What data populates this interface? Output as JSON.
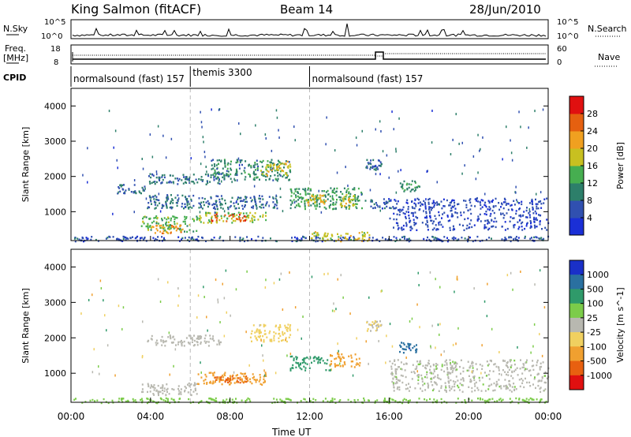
{
  "header": {
    "station": "King Salmon (fitACF)",
    "beam": "Beam 14",
    "date": "28/Jun/2010"
  },
  "strip_labels": {
    "nsky": "N.Sky",
    "nsearch": "N.Search",
    "freq_line1": "Freq.",
    "freq_line2": "[MHz]",
    "nave": "Nave",
    "cpid": "CPID"
  },
  "strip_ticks": {
    "nsky_top": "10^5",
    "nsky_bottom": "10^0",
    "freq_top": "18",
    "freq_bottom": "8",
    "nave_top": "60",
    "nave_bottom": "0"
  },
  "cpid_segments": [
    {
      "label": "normalsound (fast) 157",
      "start_hour": 0,
      "end_hour": 6
    },
    {
      "label": "themis 3300",
      "start_hour": 6,
      "end_hour": 12
    },
    {
      "label": "normalsound (fast) 157",
      "start_hour": 12,
      "end_hour": 24
    }
  ],
  "x_axis": {
    "title": "Time UT",
    "range_hours": [
      0,
      24
    ],
    "tick_labels": [
      "00:00",
      "04:00",
      "08:00",
      "12:00",
      "16:00",
      "20:00",
      "00:00"
    ],
    "tick_hours": [
      0,
      4,
      8,
      12,
      16,
      20,
      24
    ]
  },
  "panels": [
    {
      "key": "power",
      "ylabel": "Slant Range [km]",
      "yrange": [
        180,
        4500
      ],
      "yticks": [
        1000,
        2000,
        3000,
        4000
      ],
      "colorbar_label": "Power [dB]",
      "colorbar_ticks": [
        "4",
        "8",
        "12",
        "16",
        "20",
        "24",
        "28"
      ],
      "colorbar_colors": [
        "#1a2fd6",
        "#3050b0",
        "#2d7f6a",
        "#46ae50",
        "#c8c020",
        "#f0a020",
        "#e56010",
        "#e01010"
      ]
    },
    {
      "key": "velocity",
      "ylabel": "Slant Range [km]",
      "yrange": [
        180,
        4500
      ],
      "yticks": [
        1000,
        2000,
        3000,
        4000
      ],
      "colorbar_label": "Velocity [m s^-1]",
      "colorbar_ticks": [
        "1000",
        "500",
        "100",
        "25",
        "-25",
        "-100",
        "-500",
        "-1000"
      ],
      "colorbar_colors": [
        "#1a30c8",
        "#2a70a0",
        "#2f9a6a",
        "#7ccc4a",
        "#b8b8b0",
        "#f0d060",
        "#f0a030",
        "#e86010",
        "#e01010"
      ]
    }
  ],
  "chart_data": {
    "type": "heatmap",
    "title": "King Salmon (fitACF)  Beam 14  28/Jun/2010",
    "xlabel": "Time UT",
    "ylabel": "Slant Range [km]",
    "xlim_hours": [
      0,
      24
    ],
    "ylim_km": [
      180,
      4500
    ],
    "power_regions_dB": [
      {
        "t_start": 0.1,
        "t_end": 24,
        "r_start": 180,
        "r_end": 320,
        "value": 6
      },
      {
        "t_start": 3.5,
        "t_end": 6.3,
        "r_start": 450,
        "r_end": 900,
        "value": 14
      },
      {
        "t_start": 4.0,
        "t_end": 5.6,
        "r_start": 400,
        "r_end": 650,
        "value": 22
      },
      {
        "t_start": 6.3,
        "t_end": 9.8,
        "r_start": 700,
        "r_end": 1000,
        "value": 16
      },
      {
        "t_start": 7.0,
        "t_end": 8.8,
        "r_start": 750,
        "r_end": 950,
        "value": 27
      },
      {
        "t_start": 3.8,
        "t_end": 10.5,
        "r_start": 1100,
        "r_end": 1500,
        "value": 8
      },
      {
        "t_start": 3.8,
        "t_end": 7.5,
        "r_start": 1800,
        "r_end": 2100,
        "value": 9
      },
      {
        "t_start": 7.0,
        "t_end": 11.0,
        "r_start": 1900,
        "r_end": 2500,
        "value": 10
      },
      {
        "t_start": 9.5,
        "t_end": 11.0,
        "r_start": 2050,
        "r_end": 2450,
        "value": 18
      },
      {
        "t_start": 11.0,
        "t_end": 14.8,
        "r_start": 1100,
        "r_end": 1700,
        "value": 12
      },
      {
        "t_start": 11.8,
        "t_end": 12.8,
        "r_start": 1200,
        "r_end": 1500,
        "value": 20
      },
      {
        "t_start": 13.5,
        "t_end": 14.3,
        "r_start": 1150,
        "r_end": 1550,
        "value": 18
      },
      {
        "t_start": 12.0,
        "t_end": 15.0,
        "r_start": 180,
        "r_end": 450,
        "value": 18
      },
      {
        "t_start": 15.0,
        "t_end": 16.2,
        "r_start": 1100,
        "r_end": 1400,
        "value": 6
      },
      {
        "t_start": 16.5,
        "t_end": 17.5,
        "r_start": 1600,
        "r_end": 1900,
        "value": 12
      },
      {
        "t_start": 16.0,
        "t_end": 24.0,
        "r_start": 500,
        "r_end": 1400,
        "value": 5
      },
      {
        "t_start": 2.3,
        "t_end": 3.7,
        "r_start": 1500,
        "r_end": 1800,
        "value": 8
      },
      {
        "t_start": 14.8,
        "t_end": 15.6,
        "r_start": 2200,
        "r_end": 2500,
        "value": 8
      }
    ],
    "velocity_regions_m_s": [
      {
        "t_start": 0.1,
        "t_end": 24,
        "r_start": 180,
        "r_end": 320,
        "value": 60
      },
      {
        "t_start": 3.5,
        "t_end": 6.3,
        "r_start": 400,
        "r_end": 750,
        "value": 0
      },
      {
        "t_start": 3.8,
        "t_end": 7.5,
        "r_start": 1800,
        "r_end": 2100,
        "value": 0
      },
      {
        "t_start": 6.3,
        "t_end": 9.8,
        "r_start": 700,
        "r_end": 1050,
        "value": -300
      },
      {
        "t_start": 7.2,
        "t_end": 8.8,
        "r_start": 750,
        "r_end": 950,
        "value": -700
      },
      {
        "t_start": 9.0,
        "t_end": 11.0,
        "r_start": 1900,
        "r_end": 2400,
        "value": -50
      },
      {
        "t_start": 11.0,
        "t_end": 13.0,
        "r_start": 1100,
        "r_end": 1500,
        "value": 200
      },
      {
        "t_start": 13.0,
        "t_end": 14.5,
        "r_start": 1200,
        "r_end": 1600,
        "value": -300
      },
      {
        "t_start": 16.5,
        "t_end": 17.4,
        "r_start": 1600,
        "r_end": 1900,
        "value": 800
      },
      {
        "t_start": 16.0,
        "t_end": 24.0,
        "r_start": 500,
        "r_end": 1400,
        "value": 10
      },
      {
        "t_start": 14.8,
        "t_end": 15.6,
        "r_start": 2200,
        "r_end": 2500,
        "value": -30
      }
    ]
  }
}
